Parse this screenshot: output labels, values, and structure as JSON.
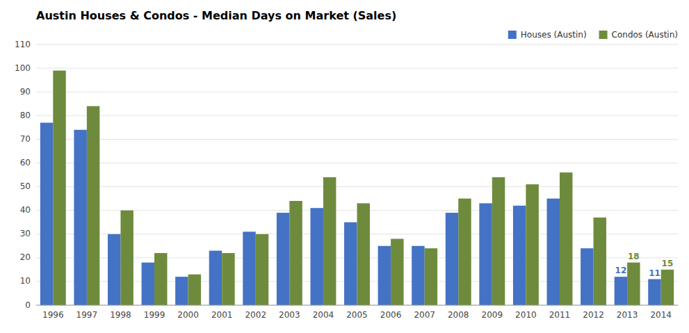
{
  "chart_data": {
    "type": "bar",
    "title": "Austin Houses & Condos - Median Days on Market (Sales)",
    "categories": [
      "1996",
      "1997",
      "1998",
      "1999",
      "2000",
      "2001",
      "2002",
      "2003",
      "2004",
      "2005",
      "2006",
      "2007",
      "2008",
      "2009",
      "2010",
      "2011",
      "2012",
      "2013",
      "2014"
    ],
    "series": [
      {
        "name": "Houses (Austin)",
        "color": "#4472C4",
        "values": [
          77,
          74,
          30,
          18,
          12,
          23,
          31,
          39,
          41,
          35,
          25,
          25,
          39,
          43,
          42,
          45,
          24,
          12,
          11
        ]
      },
      {
        "name": "Condos (Austin)",
        "color": "#6E8B3D",
        "values": [
          99,
          84,
          40,
          22,
          13,
          22,
          30,
          44,
          54,
          43,
          28,
          24,
          45,
          54,
          51,
          56,
          37,
          18,
          15
        ]
      }
    ],
    "annotations": [
      {
        "category": "2013",
        "series": "Houses (Austin)",
        "value": 12
      },
      {
        "category": "2013",
        "series": "Condos (Austin)",
        "value": 18
      },
      {
        "category": "2014",
        "series": "Houses (Austin)",
        "value": 11
      },
      {
        "category": "2014",
        "series": "Condos (Austin)",
        "value": 15
      }
    ],
    "ylim": [
      0,
      110
    ],
    "yticks": [
      0,
      10,
      20,
      30,
      40,
      50,
      60,
      70,
      80,
      90,
      100,
      110
    ],
    "grid": true,
    "legend": "upper right"
  }
}
